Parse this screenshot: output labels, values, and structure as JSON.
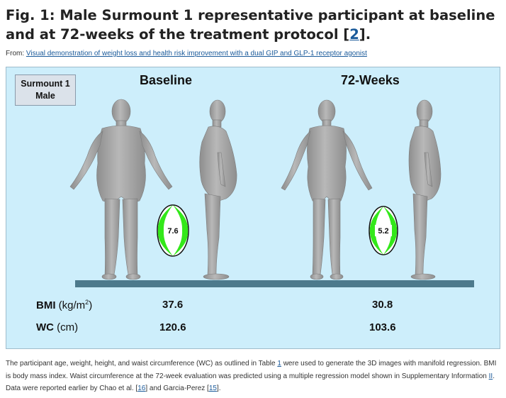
{
  "title": {
    "prefix": "Fig. 1: Male Surmount 1 representative participant at baseline and at 72-weeks of the treatment protocol [",
    "ref": "2",
    "suffix": "]."
  },
  "from": {
    "label": "From: ",
    "link": "Visual demonstration of weight loss and health risk improvement with a dual GIP and GLP-1 receptor agonist"
  },
  "figure": {
    "badge_line1": "Surmount 1",
    "badge_line2": "Male",
    "col_baseline": "Baseline",
    "col_72weeks": "72-Weeks",
    "gauge_baseline": "7.6",
    "gauge_72weeks": "5.2",
    "metrics": {
      "bmi_label": "BMI",
      "bmi_unit_pre": " (kg/m",
      "bmi_unit_sup": "2",
      "bmi_unit_post": ")",
      "wc_label": "WC",
      "wc_unit": " (cm)",
      "bmi_baseline": "37.6",
      "bmi_72weeks": "30.8",
      "wc_baseline": "120.6",
      "wc_72weeks": "103.6"
    },
    "colors": {
      "background": "#cdeefb",
      "floor": "#4d7a8c",
      "gauge_stripe": "#33e81a",
      "body": "#a6a6a6"
    }
  },
  "caption": {
    "t1": "The participant age, weight, height, and waist circumference (WC) as outlined in Table ",
    "r1": "1",
    "t2": " were used to generate the 3D images with manifold regression. BMI is body mass index. Waist circumference at the 72-week evaluation was predicted using a multiple regression model shown in Supplementary Information ",
    "r2": "II",
    "t3": ". Data were reported earlier by Chao et al. [",
    "r3": "16",
    "t4": "] and Garcia-Perez [",
    "r4": "15",
    "t5": "]."
  }
}
